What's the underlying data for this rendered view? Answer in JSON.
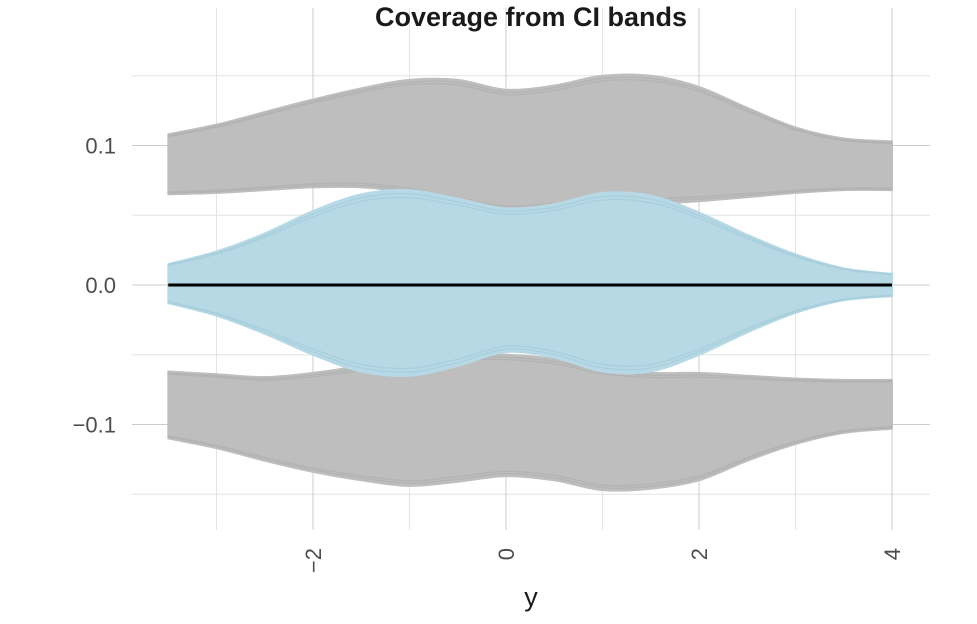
{
  "chart_data": {
    "type": "area",
    "title": "Coverage from CI bands",
    "xlabel": "y",
    "ylabel": "",
    "xlim": [
      -3.5,
      4
    ],
    "ylim": [
      -0.17,
      0.17
    ],
    "x_ticks": [
      -2,
      0,
      2,
      4
    ],
    "x_tick_labels": [
      "−2",
      "0",
      "2",
      "4"
    ],
    "y_ticks": [
      -0.1,
      0.0,
      0.1
    ],
    "y_tick_labels": [
      "−0.1",
      "0.0",
      "0.1"
    ],
    "grid": true,
    "legend": "none",
    "colors": {
      "outer_band": "#bebebe",
      "inner_band": "#b6d9e5",
      "zero_line": "#000000",
      "grid_major": "#c8cdd2",
      "grid_minor": "#e2e5e8"
    },
    "series": [
      {
        "x": [
          -3.5,
          -3,
          -2.5,
          -2,
          -1.5,
          -1,
          -0.5,
          0,
          0.5,
          1,
          1.5,
          2,
          2.5,
          3,
          3.5,
          4
        ],
        "upper": [
          0.108,
          0.115,
          0.124,
          0.133,
          0.141,
          0.147,
          0.147,
          0.14,
          0.143,
          0.15,
          0.15,
          0.142,
          0.127,
          0.113,
          0.105,
          0.103
        ],
        "lower": [
          0.065,
          0.066,
          0.068,
          0.07,
          0.07,
          0.066,
          0.059,
          0.053,
          0.055,
          0.057,
          0.058,
          0.06,
          0.063,
          0.066,
          0.068,
          0.068
        ]
      },
      {
        "x": [
          -3.5,
          -3,
          -2.5,
          -2,
          -1.5,
          -1,
          -0.5,
          0,
          0.5,
          1,
          1.5,
          2,
          2.5,
          3,
          3.5,
          4
        ],
        "upper": [
          -0.062,
          -0.064,
          -0.066,
          -0.063,
          -0.058,
          -0.053,
          -0.05,
          -0.05,
          -0.053,
          -0.06,
          -0.063,
          -0.063,
          -0.065,
          -0.067,
          -0.068,
          -0.068
        ],
        "lower": [
          -0.11,
          -0.117,
          -0.126,
          -0.134,
          -0.14,
          -0.144,
          -0.141,
          -0.137,
          -0.14,
          -0.147,
          -0.146,
          -0.14,
          -0.126,
          -0.114,
          -0.106,
          -0.103
        ]
      },
      {
        "x": [
          -3.5,
          -3,
          -2.5,
          -2,
          -1.5,
          -1,
          -0.5,
          0,
          0.5,
          1,
          1.5,
          2,
          2.5,
          3,
          3.5,
          4
        ],
        "upper": [
          0.015,
          0.024,
          0.037,
          0.053,
          0.065,
          0.068,
          0.062,
          0.055,
          0.058,
          0.066,
          0.064,
          0.052,
          0.036,
          0.022,
          0.012,
          0.008
        ],
        "lower": [
          -0.013,
          -0.022,
          -0.035,
          -0.05,
          -0.062,
          -0.065,
          -0.058,
          -0.048,
          -0.052,
          -0.062,
          -0.062,
          -0.05,
          -0.034,
          -0.02,
          -0.011,
          -0.008
        ]
      },
      {
        "x": [
          -3.5,
          4
        ],
        "values": [
          0,
          0
        ]
      }
    ]
  }
}
